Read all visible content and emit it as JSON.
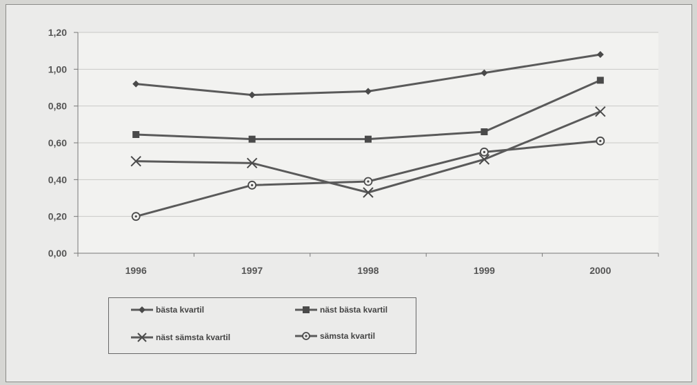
{
  "chart_data": {
    "type": "line",
    "title": "",
    "xlabel": "",
    "ylabel": "",
    "categories": [
      "1996",
      "1997",
      "1998",
      "1999",
      "2000"
    ],
    "ylim": [
      0,
      1.2
    ],
    "yticks": [
      "0,00",
      "0,20",
      "0,40",
      "0,60",
      "0,80",
      "1,00",
      "1,20"
    ],
    "grid": true,
    "legend_position": "bottom-left",
    "series": [
      {
        "name": "bästa kvartil",
        "marker": "diamond",
        "values": [
          0.92,
          0.86,
          0.88,
          0.98,
          1.08
        ]
      },
      {
        "name": "näst bästa kvartil",
        "marker": "square",
        "values": [
          0.645,
          0.62,
          0.62,
          0.66,
          0.94
        ]
      },
      {
        "name": "näst sämsta kvartil",
        "marker": "cross",
        "values": [
          0.5,
          0.49,
          0.33,
          0.51,
          0.77
        ]
      },
      {
        "name": "sämsta kvartil",
        "marker": "circle",
        "values": [
          0.2,
          0.37,
          0.39,
          0.55,
          0.61
        ]
      }
    ],
    "colors": {
      "line": "#5a5a5a",
      "grid": "#c9c9c6",
      "axis": "#777777"
    }
  }
}
